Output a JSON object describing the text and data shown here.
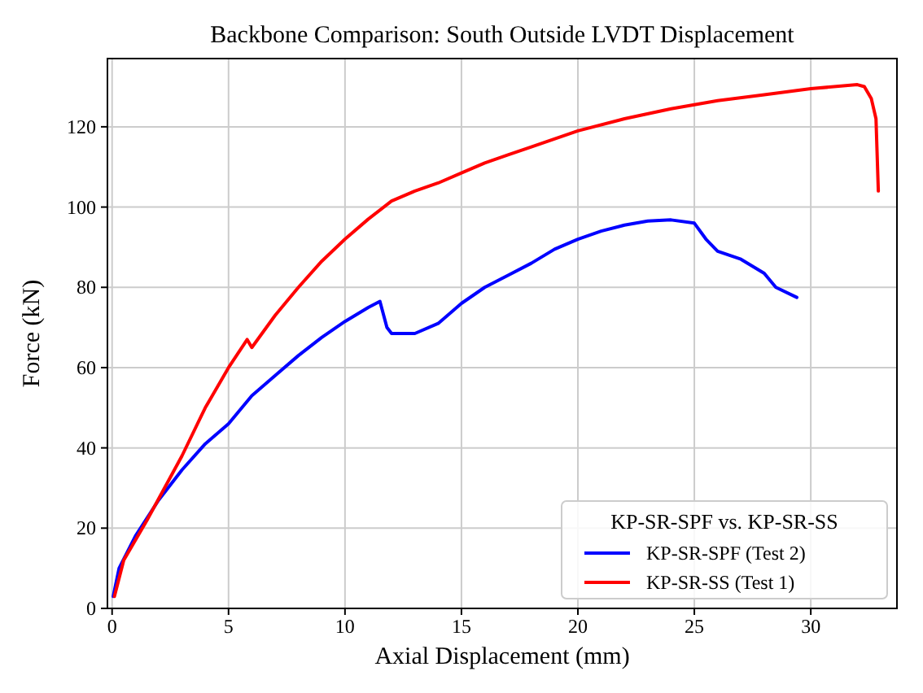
{
  "chart_data": {
    "type": "line",
    "title": "Backbone Comparison: South Outside LVDT Displacement",
    "xlabel": "Axial Displacement (mm)",
    "ylabel": "Force (kN)",
    "legend_title": "KP-SR-SPF vs. KP-SR-SS",
    "legend": "bottom right",
    "grid": true,
    "xlim": [
      -0.2,
      33.7
    ],
    "ylim": [
      0,
      137
    ],
    "xticks": [
      0,
      5,
      10,
      15,
      20,
      25,
      30
    ],
    "yticks": [
      0,
      20,
      40,
      60,
      80,
      100,
      120
    ],
    "series": [
      {
        "name": "KP-SR-SPF (Test 2)",
        "color": "#0000ff",
        "x": [
          0.05,
          0.3,
          1,
          2,
          3,
          4,
          5,
          5.5,
          6,
          7,
          8,
          9,
          10,
          11,
          11.5,
          11.8,
          12,
          13,
          14,
          15,
          16,
          17,
          18,
          19,
          20,
          21,
          22,
          23,
          24,
          25,
          25.5,
          26,
          27,
          28,
          28.5,
          29.4
        ],
        "values": [
          3,
          10,
          18,
          27,
          34.5,
          41,
          46,
          49.5,
          53,
          58,
          63,
          67.5,
          71.5,
          75,
          76.5,
          70,
          68.5,
          68.5,
          71,
          76,
          80,
          83,
          86,
          89.5,
          92,
          94,
          95.5,
          96.5,
          96.8,
          96,
          92,
          89,
          87,
          83.5,
          80,
          77.5
        ]
      },
      {
        "name": "KP-SR-SS (Test 1)",
        "color": "#ff0000",
        "x": [
          0.1,
          0.5,
          1.5,
          3,
          4,
          5,
          5.8,
          6,
          7,
          8,
          9,
          10,
          11,
          12,
          13,
          14,
          15,
          16,
          17,
          18,
          20,
          22,
          24,
          26,
          28,
          30,
          32,
          32.3,
          32.6,
          32.8,
          32.9
        ],
        "values": [
          3,
          12,
          22,
          38,
          50,
          60,
          67,
          65,
          73,
          80,
          86.5,
          92,
          97,
          101.5,
          104,
          106,
          108.5,
          111,
          113,
          115,
          119,
          122,
          124.5,
          126.5,
          128,
          129.5,
          130.5,
          130,
          127,
          122,
          104
        ]
      }
    ]
  }
}
